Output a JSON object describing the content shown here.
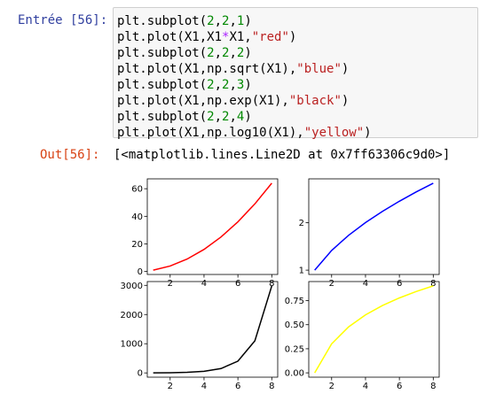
{
  "input_prompt": "Entrée [56]:",
  "output_prompt": "Out[56]:",
  "code_lines": [
    [
      {
        "t": "plt.subplot(",
        "c": ""
      },
      {
        "t": "2",
        "c": "num"
      },
      {
        "t": ",",
        "c": ""
      },
      {
        "t": "2",
        "c": "num"
      },
      {
        "t": ",",
        "c": ""
      },
      {
        "t": "1",
        "c": "num"
      },
      {
        "t": ")",
        "c": ""
      }
    ],
    [
      {
        "t": "plt.plot(X1,X1",
        "c": ""
      },
      {
        "t": "*",
        "c": "op"
      },
      {
        "t": "X1,",
        "c": ""
      },
      {
        "t": "\"red\"",
        "c": "str"
      },
      {
        "t": ")",
        "c": ""
      }
    ],
    [
      {
        "t": "plt.subplot(",
        "c": ""
      },
      {
        "t": "2",
        "c": "num"
      },
      {
        "t": ",",
        "c": ""
      },
      {
        "t": "2",
        "c": "num"
      },
      {
        "t": ",",
        "c": ""
      },
      {
        "t": "2",
        "c": "num"
      },
      {
        "t": ")",
        "c": ""
      }
    ],
    [
      {
        "t": "plt.plot(X1,np.sqrt(X1),",
        "c": ""
      },
      {
        "t": "\"blue\"",
        "c": "str"
      },
      {
        "t": ")",
        "c": ""
      }
    ],
    [
      {
        "t": "plt.subplot(",
        "c": ""
      },
      {
        "t": "2",
        "c": "num"
      },
      {
        "t": ",",
        "c": ""
      },
      {
        "t": "2",
        "c": "num"
      },
      {
        "t": ",",
        "c": ""
      },
      {
        "t": "3",
        "c": "num"
      },
      {
        "t": ")",
        "c": ""
      }
    ],
    [
      {
        "t": "plt.plot(X1,np.exp(X1),",
        "c": ""
      },
      {
        "t": "\"black\"",
        "c": "str"
      },
      {
        "t": ")",
        "c": ""
      }
    ],
    [
      {
        "t": "plt.subplot(",
        "c": ""
      },
      {
        "t": "2",
        "c": "num"
      },
      {
        "t": ",",
        "c": ""
      },
      {
        "t": "2",
        "c": "num"
      },
      {
        "t": ",",
        "c": ""
      },
      {
        "t": "4",
        "c": "num"
      },
      {
        "t": ")",
        "c": ""
      }
    ],
    [
      {
        "t": "plt.plot(X1,np.log10(X1),",
        "c": ""
      },
      {
        "t": "\"yellow\"",
        "c": "str"
      },
      {
        "t": ")",
        "c": ""
      }
    ]
  ],
  "output_text": "[<matplotlib.lines.Line2D at 0x7ff63306c9d0>]",
  "chart_data": [
    {
      "type": "line",
      "series": [
        {
          "color": "#ff0000",
          "x": [
            1,
            2,
            3,
            4,
            5,
            6,
            7,
            8
          ],
          "y": [
            1,
            4,
            9,
            16,
            25,
            36,
            49,
            64
          ]
        }
      ],
      "xlim": [
        0.65,
        8.35
      ],
      "ylim": [
        -2.15,
        67.15
      ],
      "xticks": [
        2,
        4,
        6,
        8
      ],
      "yticks": [
        0,
        20,
        40,
        60
      ],
      "ytick_labels": [
        "0",
        "20",
        "40",
        "60"
      ]
    },
    {
      "type": "line",
      "series": [
        {
          "color": "#0000ff",
          "x": [
            1,
            2,
            3,
            4,
            5,
            6,
            7,
            8
          ],
          "y": [
            1,
            1.414,
            1.732,
            2,
            2.236,
            2.449,
            2.646,
            2.828
          ]
        }
      ],
      "xlim": [
        0.65,
        8.35
      ],
      "ylim": [
        0.909,
        2.92
      ],
      "xticks": [
        2,
        4,
        6,
        8
      ],
      "yticks": [
        1,
        2
      ],
      "ytick_labels": [
        "1",
        "2"
      ]
    },
    {
      "type": "line",
      "series": [
        {
          "color": "#000000",
          "x": [
            1,
            2,
            3,
            4,
            5,
            6,
            7,
            8
          ],
          "y": [
            2.718,
            7.389,
            20.09,
            54.6,
            148.4,
            403.4,
            1096.6,
            2981
          ]
        }
      ],
      "xlim": [
        0.65,
        8.35
      ],
      "ylim": [
        -146.2,
        3130
      ],
      "xticks": [
        2,
        4,
        6,
        8
      ],
      "yticks": [
        0,
        1000,
        2000,
        3000
      ],
      "ytick_labels": [
        "0",
        "1000",
        "2000",
        "3000"
      ]
    },
    {
      "type": "line",
      "series": [
        {
          "color": "#ffff00",
          "x": [
            1,
            2,
            3,
            4,
            5,
            6,
            7,
            8
          ],
          "y": [
            0,
            0.301,
            0.477,
            0.602,
            0.699,
            0.778,
            0.845,
            0.903
          ]
        }
      ],
      "xlim": [
        0.65,
        8.35
      ],
      "ylim": [
        -0.045,
        0.948
      ],
      "xticks": [
        2,
        4,
        6,
        8
      ],
      "yticks": [
        0,
        0.25,
        0.5,
        0.75
      ],
      "ytick_labels": [
        "0.00",
        "0.25",
        "0.50",
        "0.75"
      ]
    }
  ]
}
